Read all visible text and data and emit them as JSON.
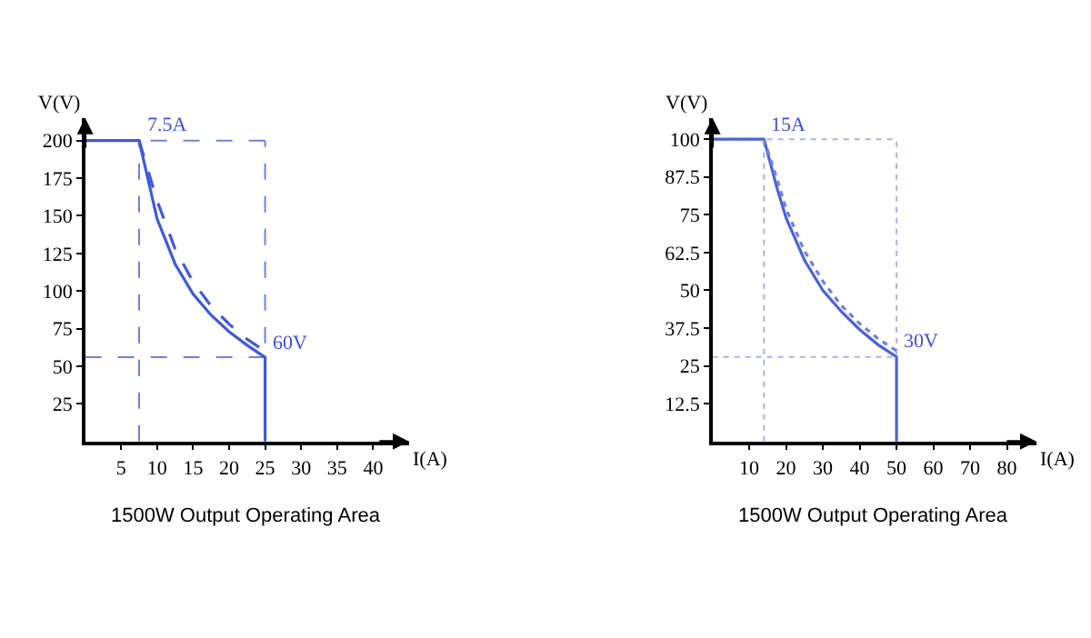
{
  "chart_data": [
    {
      "type": "line",
      "title": "1500W Output Operating Area",
      "xlabel": "I(A)",
      "ylabel": "V(V)",
      "xlim": [
        0,
        45
      ],
      "ylim": [
        0,
        215
      ],
      "xticks": [
        5,
        10,
        15,
        20,
        25,
        30,
        35,
        40
      ],
      "yticks": [
        25,
        50,
        75,
        100,
        125,
        150,
        175,
        200
      ],
      "grid": false,
      "marker": "none",
      "series": [
        {
          "color": "#3f5ad8",
          "line_style": "solid",
          "x": [
            0,
            7.5,
            10,
            12.5,
            15,
            17.5,
            20,
            22.5,
            25,
            25
          ],
          "values": [
            200,
            200,
            148,
            118,
            98,
            84,
            73,
            64,
            56,
            0
          ]
        },
        {
          "color": "#3f5ad8",
          "line_style": "dashed",
          "x": [
            7.5,
            10,
            12.5,
            15,
            17.5,
            20,
            22.5,
            25
          ],
          "values": [
            200,
            160,
            128,
            106,
            90,
            78,
            68,
            60
          ]
        }
      ],
      "ref_lines": [
        {
          "axis": "x",
          "value": 7.5,
          "color": "#6f7fe8",
          "line_style": "dashed"
        },
        {
          "axis": "x",
          "value": 25,
          "color": "#6f7fe8",
          "line_style": "dashed"
        },
        {
          "axis": "y",
          "value": 200,
          "color": "#6f7fe8",
          "line_style": "dashed"
        },
        {
          "axis": "y",
          "value": 56,
          "color": "#6f7fe8",
          "line_style": "dashed"
        }
      ],
      "annotations": [
        {
          "text": "7.5A",
          "x": 7.5,
          "y": 200
        },
        {
          "text": "60V",
          "x": 25,
          "y": 56
        }
      ]
    },
    {
      "type": "line",
      "title": "1500W Output Operating Area",
      "xlabel": "I(A)",
      "ylabel": "V(V)",
      "xlim": [
        0,
        88
      ],
      "ylim": [
        0,
        107
      ],
      "xticks": [
        10,
        20,
        30,
        40,
        50,
        60,
        70,
        80
      ],
      "yticks": [
        12.5,
        25,
        37.5,
        50,
        62.5,
        75,
        87.5,
        100
      ],
      "grid": false,
      "marker": "none",
      "series": [
        {
          "color": "#4a63d8",
          "line_style": "solid",
          "x": [
            0,
            14,
            17.5,
            20,
            25,
            30,
            35,
            40,
            45,
            50,
            50
          ],
          "values": [
            100,
            100,
            84,
            74,
            60,
            50,
            43,
            37,
            32,
            28,
            0
          ]
        },
        {
          "color": "#6f7fe8",
          "line_style": "dotted",
          "x": [
            14,
            17.5,
            20,
            25,
            30,
            35,
            40,
            45,
            50
          ],
          "values": [
            100,
            87,
            77,
            63,
            53,
            45,
            39,
            34,
            30
          ]
        }
      ],
      "ref_lines": [
        {
          "axis": "x",
          "value": 14,
          "color": "#a8b2ee",
          "line_style": "dotted"
        },
        {
          "axis": "x",
          "value": 50,
          "color": "#a8b2ee",
          "line_style": "dotted"
        },
        {
          "axis": "y",
          "value": 100,
          "color": "#a8b2ee",
          "line_style": "dotted"
        },
        {
          "axis": "y",
          "value": 28,
          "color": "#a8b2ee",
          "line_style": "dotted"
        }
      ],
      "annotations": [
        {
          "text": "15A",
          "x": 14,
          "y": 100
        },
        {
          "text": "30V",
          "x": 50,
          "y": 28
        }
      ]
    }
  ]
}
